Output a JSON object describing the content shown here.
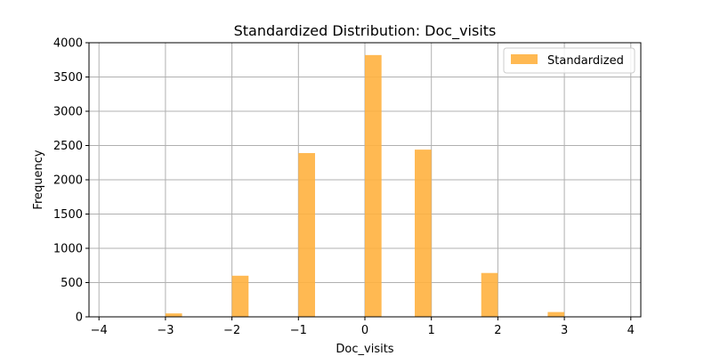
{
  "chart_data": {
    "type": "bar",
    "title": "Standardized Distribution: Doc_visits",
    "xlabel": "Doc_visits",
    "ylabel": "Frequency",
    "xlim": [
      -4.15,
      4.15
    ],
    "ylim": [
      0,
      4000
    ],
    "x_ticks": [
      -4,
      -3,
      -2,
      -1,
      0,
      1,
      2,
      3,
      4
    ],
    "x_tick_labels": [
      "−4",
      "−3",
      "−2",
      "−1",
      "0",
      "1",
      "2",
      "3",
      "4"
    ],
    "y_ticks": [
      0,
      500,
      1000,
      1500,
      2000,
      2500,
      3000,
      3500,
      4000
    ],
    "y_tick_labels": [
      "0",
      "500",
      "1000",
      "1500",
      "2000",
      "2500",
      "3000",
      "3500",
      "4000"
    ],
    "grid": true,
    "legend_position": "top-right",
    "bin_width": 0.25,
    "series": [
      {
        "name": "Standardized",
        "color": "#ffb13f",
        "bins": [
          {
            "x_start": -3.0,
            "value": 50
          },
          {
            "x_start": -2.0,
            "value": 600
          },
          {
            "x_start": -1.0,
            "value": 2390
          },
          {
            "x_start": 0.0,
            "value": 3820
          },
          {
            "x_start": 0.75,
            "value": 2440
          },
          {
            "x_start": 1.75,
            "value": 640
          },
          {
            "x_start": 2.75,
            "value": 70
          }
        ]
      }
    ]
  }
}
